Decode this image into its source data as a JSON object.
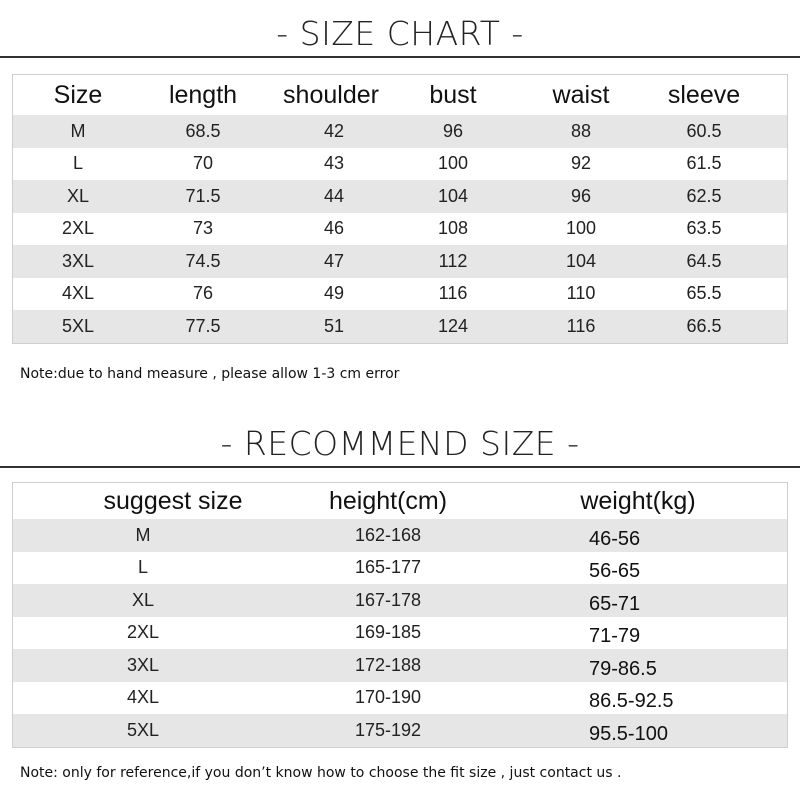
{
  "size_chart": {
    "title": "- SIZE CHART -",
    "headers": [
      "Size",
      "length",
      "shoulder",
      "bust",
      "waist",
      "sleeve"
    ],
    "rows": [
      [
        "M",
        "68.5",
        "42",
        "96",
        "88",
        "60.5"
      ],
      [
        "L",
        "70",
        "43",
        "100",
        "92",
        "61.5"
      ],
      [
        "XL",
        "71.5",
        "44",
        "104",
        "96",
        "62.5"
      ],
      [
        "2XL",
        "73",
        "46",
        "108",
        "100",
        "63.5"
      ],
      [
        "3XL",
        "74.5",
        "47",
        "112",
        "104",
        "64.5"
      ],
      [
        "4XL",
        "76",
        "49",
        "116",
        "110",
        "65.5"
      ],
      [
        "5XL",
        "77.5",
        "51",
        "124",
        "116",
        "66.5"
      ]
    ],
    "note": "Note:due to hand  measure , please allow 1-3 cm error"
  },
  "recommend": {
    "title": "- RECOMMEND SIZE -",
    "headers": [
      "suggest size",
      "height(cm)",
      "weight(kg)"
    ],
    "rows": [
      [
        "M",
        "162-168",
        "46-56"
      ],
      [
        "L",
        "165-177",
        "56-65"
      ],
      [
        "XL",
        "167-178",
        "65-71"
      ],
      [
        "2XL",
        "169-185",
        "71-79"
      ],
      [
        "3XL",
        "172-188",
        "79-86.5"
      ],
      [
        "4XL",
        "170-190",
        "86.5-92.5"
      ],
      [
        "5XL",
        "175-192",
        "95.5-100"
      ]
    ],
    "note": "Note: only for reference,if you don’t know how to choose the fit size , just contact us ."
  }
}
